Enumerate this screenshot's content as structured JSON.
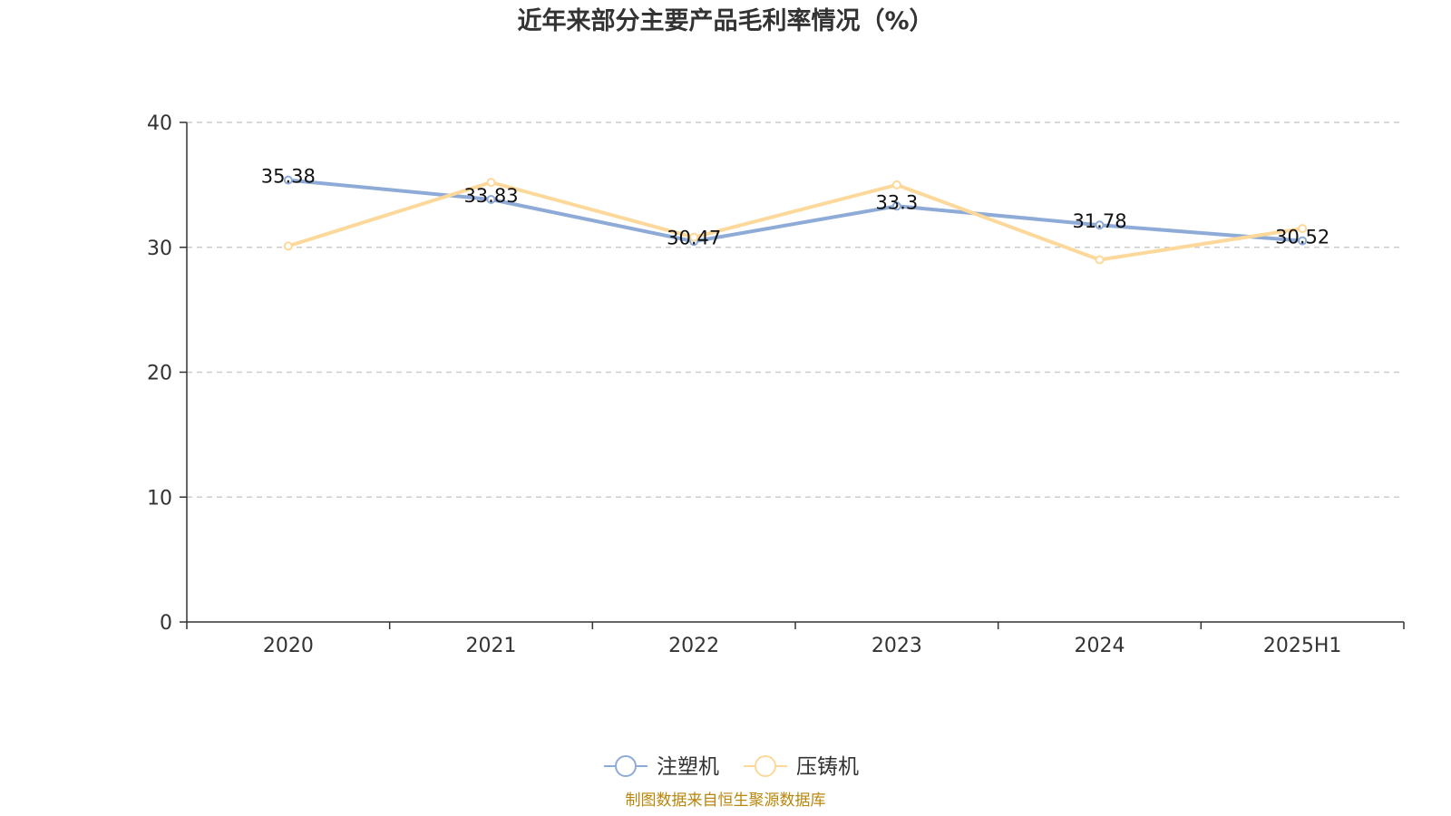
{
  "chart_data": {
    "type": "line",
    "title": "近年来部分主要产品毛利率情况（%）",
    "categories": [
      "2020",
      "2021",
      "2022",
      "2023",
      "2024",
      "2025H1"
    ],
    "ylim": [
      0,
      40
    ],
    "yticks": [
      0,
      10,
      20,
      30,
      40
    ],
    "grid": true,
    "legend_position": "bottom",
    "series": [
      {
        "name": "注塑机",
        "color": "#8eabd8",
        "values": [
          35.38,
          33.83,
          30.47,
          33.3,
          31.78,
          30.52
        ],
        "labels": [
          "35.38",
          "33.83",
          "30.47",
          "33.3",
          "31.78",
          "30.52"
        ]
      },
      {
        "name": "压铸机",
        "color": "#fcd99a",
        "values": [
          30.1,
          35.2,
          30.8,
          35.0,
          29.0,
          31.5
        ]
      }
    ]
  },
  "footer": {
    "source": "制图数据来自恒生聚源数据库"
  }
}
